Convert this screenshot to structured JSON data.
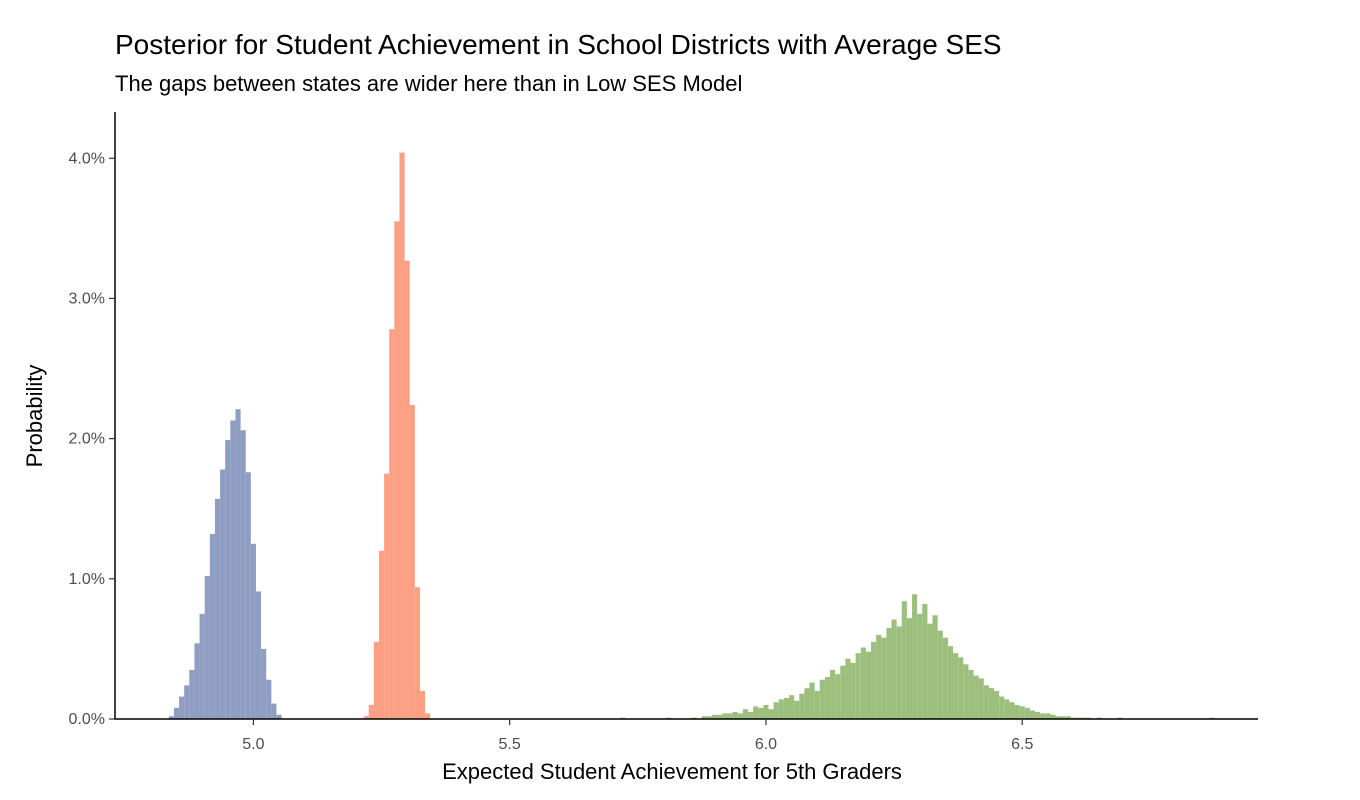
{
  "chart_data": {
    "type": "bar",
    "title": "Posterior for Student Achievement in School Districts with Average SES",
    "subtitle": "The gaps between states are wider here than in Low SES Model",
    "xlabel": "Expected Student Achievement for 5th Graders",
    "ylabel": "Probability",
    "xlim": [
      4.73,
      6.96
    ],
    "ylim": [
      0,
      0.0433
    ],
    "x_ticks": [
      5.0,
      5.5,
      6.0,
      6.5
    ],
    "x_tick_labels": [
      "5.0",
      "5.5",
      "6.0",
      "6.5"
    ],
    "y_ticks": [
      0,
      0.01,
      0.02,
      0.03,
      0.04
    ],
    "y_tick_labels": [
      "0.0%",
      "1.0%",
      "2.0%",
      "3.0%",
      "4.0%"
    ],
    "grid": false,
    "legend": "none",
    "bin_width": 0.01,
    "series": [
      {
        "color": "#8f9dc2",
        "x": [
          4.84,
          4.85,
          4.86,
          4.87,
          4.88,
          4.89,
          4.9,
          4.91,
          4.92,
          4.93,
          4.94,
          4.95,
          4.96,
          4.97,
          4.98,
          4.99,
          5.0,
          5.01,
          5.02,
          5.03,
          5.04,
          5.05
        ],
        "values": [
          0.0002,
          0.0008,
          0.0016,
          0.0024,
          0.0035,
          0.0054,
          0.0075,
          0.0102,
          0.0132,
          0.0157,
          0.0178,
          0.0199,
          0.0213,
          0.0221,
          0.0206,
          0.0176,
          0.0125,
          0.0091,
          0.005,
          0.0028,
          0.0011,
          0.0003
        ]
      },
      {
        "color": "#fc9f83",
        "x": [
          5.22,
          5.23,
          5.24,
          5.25,
          5.26,
          5.27,
          5.28,
          5.29,
          5.3,
          5.31,
          5.32,
          5.33,
          5.34
        ],
        "values": [
          0.0002,
          0.001,
          0.0055,
          0.012,
          0.0175,
          0.0278,
          0.0355,
          0.0404,
          0.0327,
          0.0224,
          0.0094,
          0.002,
          0.0004
        ]
      },
      {
        "color": "#9dbf7e",
        "x": [
          5.72,
          5.81,
          5.86,
          5.88,
          5.89,
          5.9,
          5.91,
          5.92,
          5.93,
          5.94,
          5.95,
          5.96,
          5.97,
          5.98,
          5.99,
          6.0,
          6.01,
          6.02,
          6.03,
          6.04,
          6.05,
          6.06,
          6.07,
          6.08,
          6.09,
          6.1,
          6.11,
          6.12,
          6.13,
          6.14,
          6.15,
          6.16,
          6.17,
          6.18,
          6.19,
          6.2,
          6.21,
          6.22,
          6.23,
          6.24,
          6.25,
          6.26,
          6.27,
          6.28,
          6.29,
          6.3,
          6.31,
          6.32,
          6.33,
          6.34,
          6.35,
          6.36,
          6.37,
          6.38,
          6.39,
          6.4,
          6.41,
          6.42,
          6.43,
          6.44,
          6.45,
          6.46,
          6.47,
          6.48,
          6.49,
          6.5,
          6.51,
          6.52,
          6.53,
          6.54,
          6.55,
          6.56,
          6.57,
          6.58,
          6.59,
          6.6,
          6.61,
          6.62,
          6.63,
          6.65,
          6.69,
          6.87
        ],
        "values": [
          0.0001,
          0.0001,
          0.0001,
          0.0002,
          0.0002,
          0.0003,
          0.0003,
          0.0004,
          0.0004,
          0.0005,
          0.0004,
          0.0007,
          0.0005,
          0.0009,
          0.0008,
          0.001,
          0.0007,
          0.0012,
          0.0014,
          0.0015,
          0.0017,
          0.0013,
          0.0018,
          0.0022,
          0.0026,
          0.002,
          0.0028,
          0.003,
          0.0035,
          0.0032,
          0.0038,
          0.0043,
          0.004,
          0.0047,
          0.0051,
          0.0048,
          0.0055,
          0.006,
          0.0058,
          0.0065,
          0.0071,
          0.0066,
          0.0084,
          0.0072,
          0.0089,
          0.0075,
          0.0082,
          0.0068,
          0.0074,
          0.0063,
          0.0058,
          0.0052,
          0.0047,
          0.0044,
          0.0039,
          0.0035,
          0.0031,
          0.0029,
          0.0024,
          0.0022,
          0.002,
          0.0016,
          0.0014,
          0.0012,
          0.001,
          0.0009,
          0.0008,
          0.0006,
          0.0005,
          0.0004,
          0.0004,
          0.0003,
          0.0002,
          0.0002,
          0.0002,
          0.0001,
          0.0001,
          0.0001,
          0.0001,
          0.0001,
          0.0001,
          0.0001
        ]
      }
    ]
  }
}
